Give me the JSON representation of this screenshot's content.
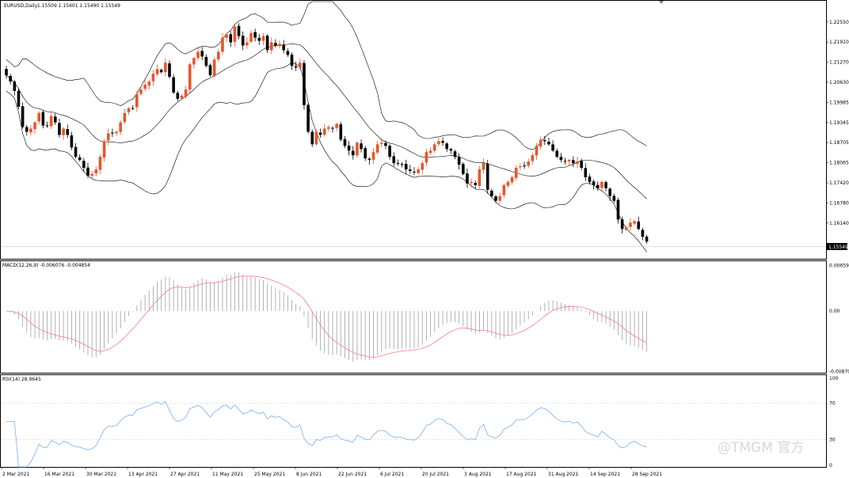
{
  "chart_data": {
    "type": "candlestick",
    "symbol": "EURUSD,Daily",
    "ohlc_text": "1.15509 1.15601 1.15490 1.15549",
    "last_price": "1.15549",
    "colors": {
      "up": "#e8552a",
      "down": "#000000",
      "bands": "#000000",
      "hist": "#a0a0a0",
      "signal": "#f08080",
      "rsi": "#7ab0f0"
    },
    "price_ticks": [
      "1.22550",
      "1.21910",
      "1.21270",
      "1.20630",
      "1.19985",
      "1.19345",
      "1.18705",
      "1.18065",
      "1.17420",
      "1.16780",
      "1.16140"
    ],
    "price_range": [
      1.15,
      1.232
    ],
    "macd": {
      "title": "MACD(12,26,9) -0.006076 -0.004854",
      "ticks": [
        "0.006595",
        "0.00",
        "-0.008704"
      ],
      "range": [
        -0.0089,
        0.0071
      ]
    },
    "rsi": {
      "title": "RSI(14) 28.9645",
      "ticks": [
        "100",
        "70",
        "30",
        "0"
      ],
      "range": [
        0,
        100
      ]
    },
    "date_labels": [
      "2 Mar 2021",
      "16 Mar 2021",
      "30 Mar 2021",
      "13 Apr 2021",
      "27 Apr 2021",
      "11 May 2021",
      "25 May 2021",
      "8 Jun 2021",
      "22 Jun 2021",
      "6 Jul 2021",
      "20 Jul 2021",
      "3 Aug 2021",
      "17 Aug 2021",
      "31 Aug 2021",
      "14 Sep 2021",
      "28 Sep 2021"
    ],
    "closes": [
      1.2085,
      1.2065,
      1.2035,
      1.1985,
      1.192,
      1.1905,
      1.1915,
      1.1935,
      1.1965,
      1.1925,
      1.1925,
      1.1955,
      1.1935,
      1.1895,
      1.1915,
      1.1895,
      1.1855,
      1.1825,
      1.1815,
      1.179,
      1.1765,
      1.177,
      1.1785,
      1.1825,
      1.1875,
      1.19,
      1.19,
      1.1905,
      1.1935,
      1.1965,
      1.198,
      1.198,
      1.2025,
      1.204,
      1.2055,
      1.2065,
      1.209,
      1.2105,
      1.2095,
      1.2125,
      1.208,
      1.203,
      1.201,
      1.202,
      1.204,
      1.212,
      1.214,
      1.216,
      1.2145,
      1.2115,
      1.2085,
      1.2135,
      1.216,
      1.2205,
      1.2215,
      1.219,
      1.224,
      1.221,
      1.218,
      1.219,
      1.222,
      1.2205,
      1.2195,
      1.221,
      1.2165,
      1.219,
      1.218,
      1.2185,
      1.2165,
      1.215,
      1.2115,
      1.211,
      1.2125,
      1.199,
      1.1905,
      1.1865,
      1.1905,
      1.1895,
      1.1915,
      1.192,
      1.1915,
      1.193,
      1.188,
      1.186,
      1.1845,
      1.183,
      1.187,
      1.185,
      1.182,
      1.1815,
      1.184,
      1.1865,
      1.187,
      1.186,
      1.1825,
      1.1805,
      1.1805,
      1.18,
      1.1785,
      1.178,
      1.1775,
      1.1785,
      1.1805,
      1.184,
      1.1845,
      1.1865,
      1.1875,
      1.187,
      1.185,
      1.1845,
      1.1825,
      1.18,
      1.177,
      1.174,
      1.1745,
      1.1735,
      1.1785,
      1.1805,
      1.172,
      1.17,
      1.1685,
      1.17,
      1.1735,
      1.1745,
      1.176,
      1.179,
      1.1795,
      1.1795,
      1.181,
      1.183,
      1.186,
      1.188,
      1.1875,
      1.1865,
      1.1845,
      1.1825,
      1.1815,
      1.181,
      1.1815,
      1.1805,
      1.181,
      1.179,
      1.176,
      1.1745,
      1.1735,
      1.1725,
      1.1745,
      1.1725,
      1.17,
      1.1685,
      1.1625,
      1.1595,
      1.16,
      1.1615,
      1.162,
      1.1595,
      1.157,
      1.1555
    ]
  },
  "watermark": "@TMGM 官方"
}
